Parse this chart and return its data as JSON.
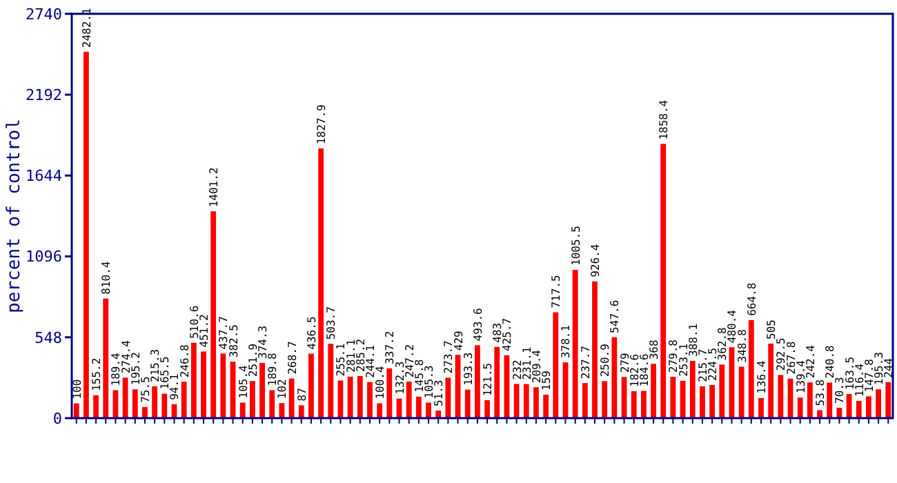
{
  "chart_data": {
    "type": "bar",
    "ylabel": "percent of control",
    "color": "#ff0000",
    "categories": [
      null,
      null,
      null,
      null,
      null,
      null,
      null,
      null,
      null,
      null,
      null,
      null,
      null,
      null,
      null,
      null,
      null,
      null,
      null,
      null,
      null,
      null,
      null,
      null,
      null,
      null,
      null,
      null,
      null,
      null,
      null,
      null,
      null,
      null,
      null,
      null,
      null,
      null,
      null,
      null,
      null,
      null,
      null,
      null,
      null,
      null,
      null,
      null,
      null,
      null,
      null,
      null,
      null,
      null,
      null,
      null,
      null,
      null,
      null,
      null,
      null,
      null,
      null,
      null,
      null,
      null,
      null,
      null,
      null,
      null,
      null,
      null,
      null,
      null,
      null,
      null,
      null,
      null,
      null,
      null,
      null,
      null,
      null,
      null
    ],
    "values": [
      100,
      2482.1,
      155.2,
      810.4,
      189.4,
      274.4,
      195.2,
      75.5,
      215.3,
      165.5,
      94.1,
      246.8,
      510.6,
      451.2,
      1401.2,
      437.7,
      382.5,
      105.4,
      251.9,
      374.3,
      189.8,
      102,
      268.7,
      87,
      436.5,
      1827.9,
      503.7,
      255.1,
      281.1,
      285.2,
      244.1,
      100.4,
      337.2,
      132.3,
      247.2,
      145.8,
      105.3,
      51.3,
      273.7,
      429,
      193.3,
      493.6,
      121.5,
      483,
      425.7,
      232,
      231.1,
      209.4,
      159,
      717.5,
      378.1,
      1005.5,
      237.7,
      926.4,
      250.9,
      547.6,
      279,
      182.6,
      184.6,
      368,
      1858.4,
      279.8,
      253.1,
      388.1,
      215.7,
      224.5,
      362.8,
      480.4,
      348.8,
      664.8,
      136.4,
      505,
      292.5,
      267.8,
      139.4,
      242.4,
      53.8,
      240.8,
      70.3,
      163.5,
      116.4,
      147.8,
      195.3,
      244
    ],
    "ylim": [
      0,
      2740
    ],
    "yticks": [
      0,
      548,
      1096,
      1644,
      2192,
      2740
    ],
    "data_labels": true
  }
}
